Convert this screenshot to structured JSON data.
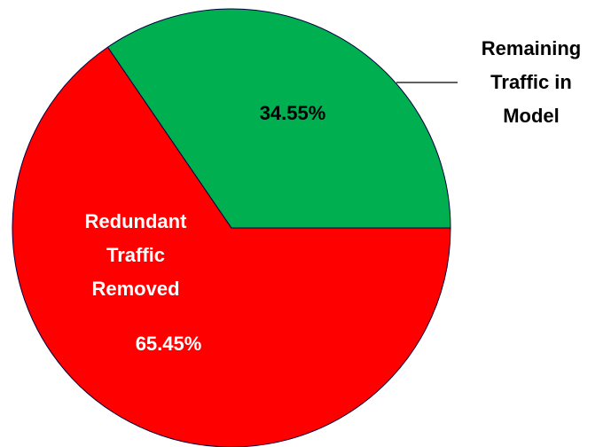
{
  "chart_data": {
    "type": "pie",
    "categories": [
      "Remaining Traffic in Model",
      "Redundant Traffic Removed"
    ],
    "values": [
      34.55,
      65.45
    ],
    "value_labels": [
      "34.55%",
      "65.45%"
    ],
    "colors": [
      "#00b050",
      "#ff0000"
    ]
  }
}
